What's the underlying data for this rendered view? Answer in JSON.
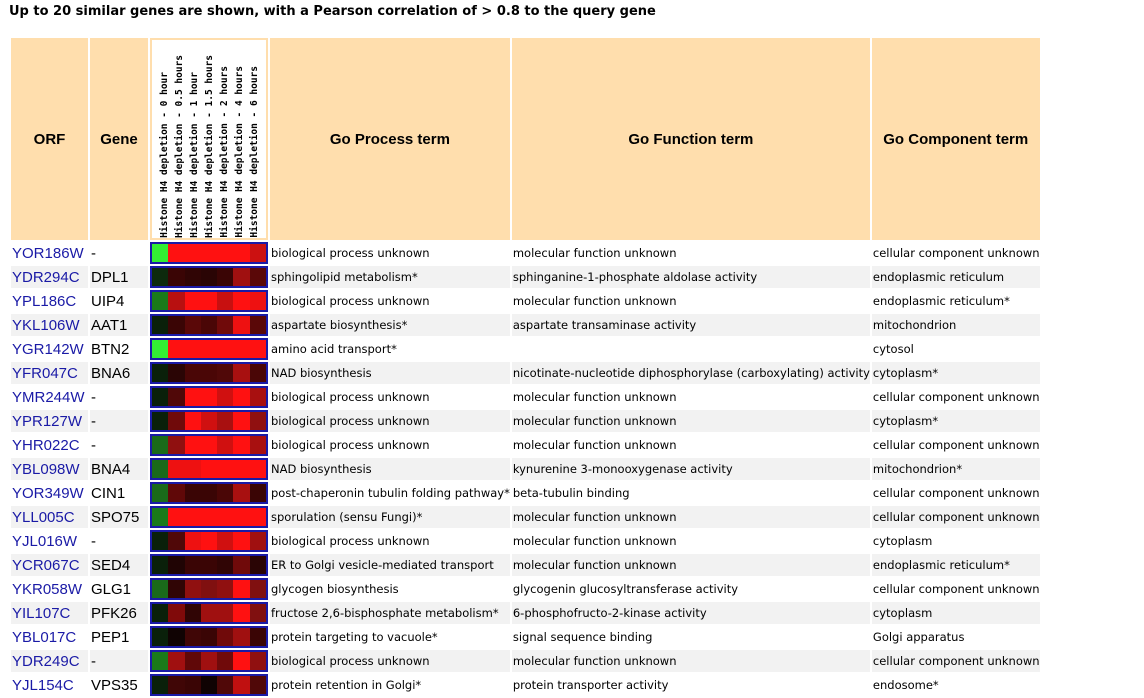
{
  "title": "Up to 20 similar genes are shown, with a Pearson correlation of > 0.8 to the query gene",
  "headers": {
    "orf": "ORF",
    "gene": "Gene",
    "process": "Go Process term",
    "function": "Go Function term",
    "component": "Go Component term"
  },
  "timepoints": [
    "Histone H4 depletion - 0 hour",
    "Histone H4 depletion - 0.5 hours",
    "Histone H4 depletion - 1 hour",
    "Histone H4 depletion - 1.5 hours",
    "Histone H4 depletion - 2 hours",
    "Histone H4 depletion - 4 hours",
    "Histone H4 depletion - 6 hours"
  ],
  "rows": [
    {
      "orf": "YOR186W",
      "gene": "-",
      "process": "biological process unknown",
      "function": "molecular function unknown",
      "component": "cellular component unknown",
      "colors": [
        "#33ee33",
        "#ff1111",
        "#ff1111",
        "#ff1111",
        "#ff1111",
        "#ff1111",
        "#cc1111"
      ]
    },
    {
      "orf": "YDR294C",
      "gene": "DPL1",
      "process": "sphingolipid metabolism*",
      "function": "sphinganine-1-phosphate aldolase activity",
      "component": "endoplasmic reticulum",
      "colors": [
        "#0d2a0d",
        "#3a0505",
        "#300505",
        "#2a0505",
        "#3a0505",
        "#a01010",
        "#5a0808"
      ]
    },
    {
      "orf": "YPL186C",
      "gene": "UIP4",
      "process": "biological process unknown",
      "function": "molecular function unknown",
      "component": "endoplasmic reticulum*",
      "colors": [
        "#1a7a1a",
        "#b81010",
        "#ff1111",
        "#ff1111",
        "#c81010",
        "#ff1111",
        "#ee1111"
      ]
    },
    {
      "orf": "YKL106W",
      "gene": "AAT1",
      "process": "aspartate biosynthesis*",
      "function": "aspartate transaminase activity",
      "component": "mitochondrion",
      "colors": [
        "#0a200a",
        "#3a0505",
        "#5a0808",
        "#4a0606",
        "#700a0a",
        "#ee1111",
        "#5a0808"
      ]
    },
    {
      "orf": "YGR142W",
      "gene": "BTN2",
      "process": "amino acid transport*",
      "function": "",
      "component": "cytosol",
      "colors": [
        "#33ee33",
        "#ff1111",
        "#ff1111",
        "#ff1111",
        "#ff1111",
        "#ff1111",
        "#ff1111"
      ]
    },
    {
      "orf": "YFR047C",
      "gene": "BNA6",
      "process": "NAD biosynthesis",
      "function": "nicotinate-nucleotide diphosphorylase (carboxylating) activity",
      "component": "cytoplasm*",
      "colors": [
        "#0a200a",
        "#2a0505",
        "#4a0606",
        "#4a0606",
        "#500808",
        "#a81010",
        "#4a0606"
      ]
    },
    {
      "orf": "YMR244W",
      "gene": "-",
      "process": "biological process unknown",
      "function": "molecular function unknown",
      "component": "cellular component unknown",
      "colors": [
        "#0a200a",
        "#500808",
        "#ff1111",
        "#ff1111",
        "#d01010",
        "#ff1111",
        "#a81010"
      ]
    },
    {
      "orf": "YPR127W",
      "gene": "-",
      "process": "biological process unknown",
      "function": "molecular function unknown",
      "component": "cytoplasm*",
      "colors": [
        "#0a200a",
        "#700a0a",
        "#ff1111",
        "#d01010",
        "#a81010",
        "#ff1111",
        "#901010"
      ]
    },
    {
      "orf": "YHR022C",
      "gene": "-",
      "process": "biological process unknown",
      "function": "molecular function unknown",
      "component": "cellular component unknown",
      "colors": [
        "#1a6a1a",
        "#901010",
        "#ff1111",
        "#ff1111",
        "#d01010",
        "#ff1111",
        "#a81010"
      ]
    },
    {
      "orf": "YBL098W",
      "gene": "BNA4",
      "process": "NAD biosynthesis",
      "function": "kynurenine 3-monooxygenase activity",
      "component": "mitochondrion*",
      "colors": [
        "#1a6a1a",
        "#ee1111",
        "#ee1111",
        "#ff1111",
        "#ff1111",
        "#ff1111",
        "#ff1111"
      ]
    },
    {
      "orf": "YOR349W",
      "gene": "CIN1",
      "process": "post-chaperonin tubulin folding pathway*",
      "function": "beta-tubulin binding",
      "component": "cellular component unknown",
      "colors": [
        "#1a6a1a",
        "#600808",
        "#3a0505",
        "#3a0505",
        "#4a0606",
        "#a81010",
        "#3a0505"
      ]
    },
    {
      "orf": "YLL005C",
      "gene": "SPO75",
      "process": "sporulation (sensu Fungi)*",
      "function": "molecular function unknown",
      "component": "cellular component unknown",
      "colors": [
        "#1a7a1a",
        "#ff1111",
        "#ff1111",
        "#ff1111",
        "#ff1111",
        "#ff1111",
        "#ff1111"
      ]
    },
    {
      "orf": "YJL016W",
      "gene": "-",
      "process": "biological process unknown",
      "function": "molecular function unknown",
      "component": "cytoplasm",
      "colors": [
        "#0a200a",
        "#500808",
        "#ee1111",
        "#ff1111",
        "#d01010",
        "#ff1111",
        "#a01010"
      ]
    },
    {
      "orf": "YCR067C",
      "gene": "SED4",
      "process": "ER to Golgi vesicle-mediated transport",
      "function": "molecular function unknown",
      "component": "endoplasmic reticulum*",
      "colors": [
        "#0a200a",
        "#200404",
        "#3a0505",
        "#3a0505",
        "#300505",
        "#700a0a",
        "#2a0505"
      ]
    },
    {
      "orf": "YKR058W",
      "gene": "GLG1",
      "process": "glycogen biosynthesis",
      "function": "glycogenin glucosyltransferase activity",
      "component": "cellular component unknown",
      "colors": [
        "#1a6a1a",
        "#300505",
        "#901010",
        "#801010",
        "#901010",
        "#ff1111",
        "#801010"
      ]
    },
    {
      "orf": "YIL107C",
      "gene": "PFK26",
      "process": "fructose 2,6-bisphosphate metabolism*",
      "function": "6-phosphofructo-2-kinase activity",
      "component": "cytoplasm",
      "colors": [
        "#0a200a",
        "#800a0a",
        "#300505",
        "#a01010",
        "#a01010",
        "#ff1111",
        "#801010"
      ]
    },
    {
      "orf": "YBL017C",
      "gene": "PEP1",
      "process": "protein targeting to vacuole*",
      "function": "signal sequence binding",
      "component": "Golgi apparatus",
      "colors": [
        "#0a200a",
        "#100303",
        "#400606",
        "#3a0505",
        "#700a0a",
        "#a01010",
        "#3a0505"
      ]
    },
    {
      "orf": "YDR249C",
      "gene": "-",
      "process": "biological process unknown",
      "function": "molecular function unknown",
      "component": "cellular component unknown",
      "colors": [
        "#1a7a1a",
        "#a01010",
        "#600808",
        "#a01010",
        "#700a0a",
        "#ff1111",
        "#901010"
      ]
    },
    {
      "orf": "YJL154C",
      "gene": "VPS35",
      "process": "protein retention in Golgi*",
      "function": "protein transporter activity",
      "component": "endosome*",
      "colors": [
        "#0a200a",
        "#400606",
        "#3a0505",
        "#100303",
        "#500808",
        "#c01010",
        "#500808"
      ]
    }
  ]
}
